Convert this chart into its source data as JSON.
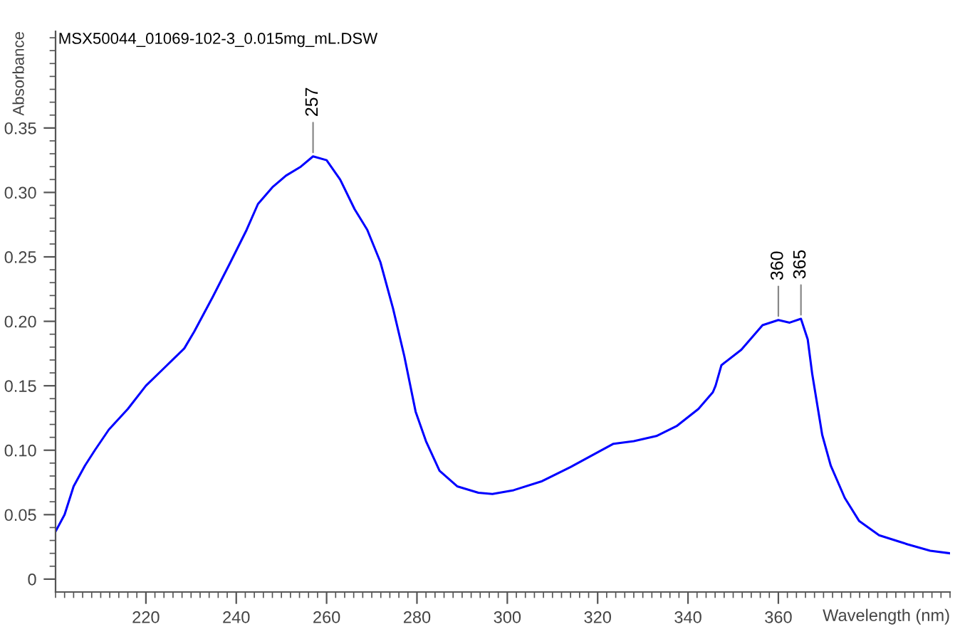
{
  "chart_data": {
    "type": "line",
    "title": "MSX50044_01069-102-3_0.015mg_mL.DSW",
    "xlabel": "Wavelength (nm)",
    "ylabel": "Absorbance",
    "series": [
      {
        "color": "#0000ff",
        "x": [
          200,
          202,
          204,
          206.5,
          208.7,
          211.8,
          216,
          220,
          224.4,
          228.5,
          230.7,
          234.8,
          238.6,
          242.3,
          244.8,
          248,
          251,
          254.3,
          257,
          260,
          263,
          266.2,
          269,
          271.9,
          274.7,
          277.2,
          279.7,
          282,
          285,
          288.9,
          293.6,
          296.7,
          301.4,
          307.7,
          314,
          320.3,
          323.5,
          328,
          333,
          337.6,
          342.3,
          345.5,
          346.1,
          347.4,
          351.8,
          356.5,
          360,
          362.5,
          365,
          366.5,
          367.5,
          369.7,
          371.6,
          374.7,
          377.9,
          382.3,
          388.6,
          393.6,
          398
        ],
        "values": [
          0.037,
          0.05,
          0.072,
          0.088,
          0.1,
          0.116,
          0.132,
          0.15,
          0.165,
          0.179,
          0.192,
          0.219,
          0.245,
          0.271,
          0.291,
          0.304,
          0.313,
          0.32,
          0.328,
          0.325,
          0.31,
          0.287,
          0.271,
          0.246,
          0.21,
          0.173,
          0.13,
          0.107,
          0.084,
          0.072,
          0.067,
          0.066,
          0.069,
          0.076,
          0.087,
          0.099,
          0.105,
          0.107,
          0.111,
          0.119,
          0.132,
          0.145,
          0.15,
          0.166,
          0.178,
          0.197,
          0.201,
          0.199,
          0.202,
          0.186,
          0.159,
          0.112,
          0.088,
          0.063,
          0.045,
          0.034,
          0.027,
          0.022,
          0.02
        ]
      }
    ],
    "annotations": [
      {
        "text": "257",
        "x": 257,
        "y": 0.328
      },
      {
        "text": "360",
        "x": 360,
        "y": 0.201
      },
      {
        "text": "365",
        "x": 365,
        "y": 0.202
      }
    ],
    "xlim": [
      200,
      398
    ],
    "ylim": [
      -0.01,
      0.425
    ],
    "xticks": [
      {
        "value": 220,
        "label": "220"
      },
      {
        "value": 240,
        "label": "240"
      },
      {
        "value": 260,
        "label": "260"
      },
      {
        "value": 280,
        "label": "280"
      },
      {
        "value": 300,
        "label": "300"
      },
      {
        "value": 320,
        "label": "320"
      },
      {
        "value": 340,
        "label": "340"
      },
      {
        "value": 360,
        "label": "360"
      },
      {
        "value": 380,
        "label": null
      },
      {
        "value": 200,
        "label": null
      },
      {
        "value": 202,
        "label": null
      },
      {
        "value": 204,
        "label": null
      },
      {
        "value": 206,
        "label": null
      },
      {
        "value": 208,
        "label": null
      },
      {
        "value": 210,
        "label": null
      },
      {
        "value": 212,
        "label": null
      },
      {
        "value": 214,
        "label": null
      },
      {
        "value": 216,
        "label": null
      },
      {
        "value": 218,
        "label": null
      },
      {
        "value": 222,
        "label": null
      },
      {
        "value": 224,
        "label": null
      },
      {
        "value": 226,
        "label": null
      },
      {
        "value": 228,
        "label": null
      },
      {
        "value": 230,
        "label": null
      },
      {
        "value": 232,
        "label": null
      },
      {
        "value": 234,
        "label": null
      },
      {
        "value": 236,
        "label": null
      },
      {
        "value": 238,
        "label": null
      },
      {
        "value": 242,
        "label": null
      },
      {
        "value": 244,
        "label": null
      },
      {
        "value": 246,
        "label": null
      },
      {
        "value": 248,
        "label": null
      },
      {
        "value": 250,
        "label": null
      },
      {
        "value": 252,
        "label": null
      },
      {
        "value": 254,
        "label": null
      },
      {
        "value": 256,
        "label": null
      },
      {
        "value": 258,
        "label": null
      },
      {
        "value": 262,
        "label": null
      },
      {
        "value": 264,
        "label": null
      },
      {
        "value": 266,
        "label": null
      },
      {
        "value": 268,
        "label": null
      },
      {
        "value": 270,
        "label": null
      },
      {
        "value": 272,
        "label": null
      },
      {
        "value": 274,
        "label": null
      },
      {
        "value": 276,
        "label": null
      },
      {
        "value": 278,
        "label": null
      },
      {
        "value": 282,
        "label": null
      },
      {
        "value": 284,
        "label": null
      },
      {
        "value": 286,
        "label": null
      },
      {
        "value": 288,
        "label": null
      },
      {
        "value": 290,
        "label": null
      },
      {
        "value": 292,
        "label": null
      },
      {
        "value": 294,
        "label": null
      },
      {
        "value": 296,
        "label": null
      },
      {
        "value": 298,
        "label": null
      },
      {
        "value": 302,
        "label": null
      },
      {
        "value": 304,
        "label": null
      },
      {
        "value": 306,
        "label": null
      },
      {
        "value": 308,
        "label": null
      },
      {
        "value": 310,
        "label": null
      },
      {
        "value": 312,
        "label": null
      },
      {
        "value": 314,
        "label": null
      },
      {
        "value": 316,
        "label": null
      },
      {
        "value": 318,
        "label": null
      },
      {
        "value": 322,
        "label": null
      },
      {
        "value": 324,
        "label": null
      },
      {
        "value": 326,
        "label": null
      },
      {
        "value": 328,
        "label": null
      },
      {
        "value": 330,
        "label": null
      },
      {
        "value": 332,
        "label": null
      },
      {
        "value": 334,
        "label": null
      },
      {
        "value": 336,
        "label": null
      },
      {
        "value": 338,
        "label": null
      },
      {
        "value": 342,
        "label": null
      },
      {
        "value": 344,
        "label": null
      },
      {
        "value": 346,
        "label": null
      },
      {
        "value": 348,
        "label": null
      },
      {
        "value": 350,
        "label": null
      },
      {
        "value": 352,
        "label": null
      },
      {
        "value": 354,
        "label": null
      },
      {
        "value": 356,
        "label": null
      },
      {
        "value": 358,
        "label": null
      },
      {
        "value": 362,
        "label": null
      },
      {
        "value": 364,
        "label": null
      },
      {
        "value": 366,
        "label": null
      },
      {
        "value": 368,
        "label": null
      },
      {
        "value": 370,
        "label": null
      },
      {
        "value": 372,
        "label": null
      },
      {
        "value": 374,
        "label": null
      },
      {
        "value": 376,
        "label": null
      },
      {
        "value": 378,
        "label": null
      },
      {
        "value": 382,
        "label": null
      },
      {
        "value": 384,
        "label": null
      },
      {
        "value": 386,
        "label": null
      },
      {
        "value": 388,
        "label": null
      },
      {
        "value": 390,
        "label": null
      },
      {
        "value": 392,
        "label": null
      },
      {
        "value": 394,
        "label": null
      },
      {
        "value": 396,
        "label": null
      },
      {
        "value": 398,
        "label": null
      }
    ],
    "yticks": [
      0,
      0.05,
      {
        "value": 0.1,
        "label": "0.10"
      },
      0.15,
      {
        "value": 0.2,
        "label": "0.20"
      },
      0.25,
      {
        "value": 0.3,
        "label": "0.30"
      },
      0.35,
      {
        "value": 0.01,
        "label": null
      },
      {
        "value": 0.02,
        "label": null
      },
      {
        "value": 0.03,
        "label": null
      },
      {
        "value": 0.04,
        "label": null
      },
      {
        "value": 0.06,
        "label": null
      },
      {
        "value": 0.07,
        "label": null
      },
      {
        "value": 0.08,
        "label": null
      },
      {
        "value": 0.09,
        "label": null
      },
      {
        "value": 0.11,
        "label": null
      },
      {
        "value": 0.12,
        "label": null
      },
      {
        "value": 0.13,
        "label": null
      },
      {
        "value": 0.14,
        "label": null
      },
      {
        "value": 0.16,
        "label": null
      },
      {
        "value": 0.17,
        "label": null
      },
      {
        "value": 0.18,
        "label": null
      },
      {
        "value": 0.19,
        "label": null
      },
      {
        "value": 0.21,
        "label": null
      },
      {
        "value": 0.22,
        "label": null
      },
      {
        "value": 0.23,
        "label": null
      },
      {
        "value": 0.24,
        "label": null
      },
      {
        "value": 0.26,
        "label": null
      },
      {
        "value": 0.27,
        "label": null
      },
      {
        "value": 0.28,
        "label": null
      },
      {
        "value": 0.29,
        "label": null
      },
      {
        "value": 0.31,
        "label": null
      },
      {
        "value": 0.32,
        "label": null
      },
      {
        "value": 0.33,
        "label": null
      },
      {
        "value": 0.34,
        "label": null
      },
      {
        "value": 0.36,
        "label": null
      },
      {
        "value": 0.37,
        "label": null
      },
      {
        "value": 0.38,
        "label": null
      },
      {
        "value": 0.39,
        "label": null
      },
      {
        "value": 0.4,
        "label": null
      },
      {
        "value": 0.41,
        "label": null
      },
      {
        "value": 0.42,
        "label": null
      }
    ],
    "grid": false,
    "legend": false
  }
}
